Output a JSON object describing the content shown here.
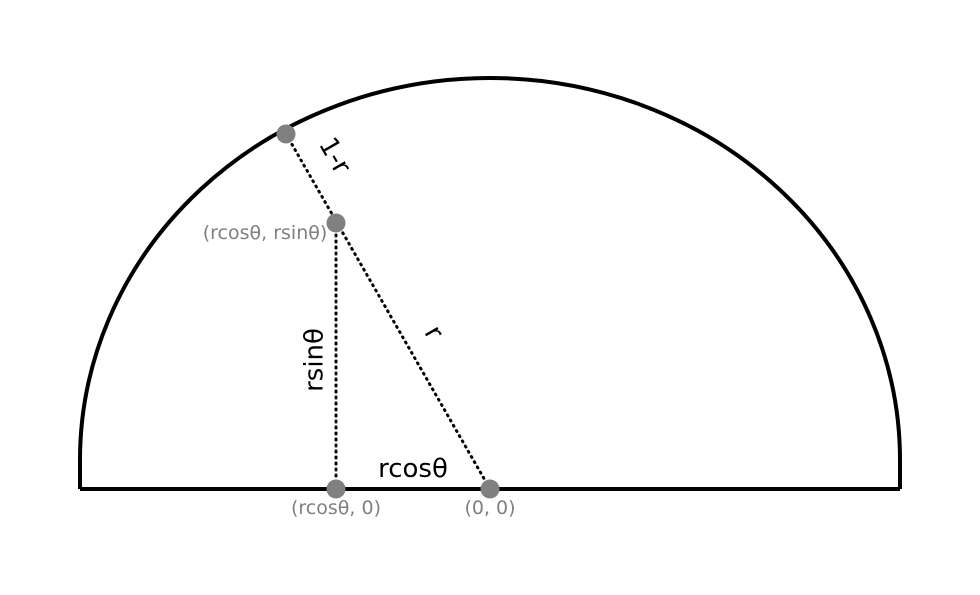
{
  "diagram": {
    "labels": {
      "one_minus_r": "1-r",
      "r": "r",
      "rsin": "rsinθ",
      "rcos": "rcosθ",
      "point_top": "(rcosθ, rsinθ)",
      "point_foot": "(rcosθ, 0)",
      "point_origin": "(0, 0)"
    },
    "colors": {
      "outline": "#000000",
      "point": "#808080",
      "point_label": "#808080",
      "background": "#ffffff"
    }
  }
}
